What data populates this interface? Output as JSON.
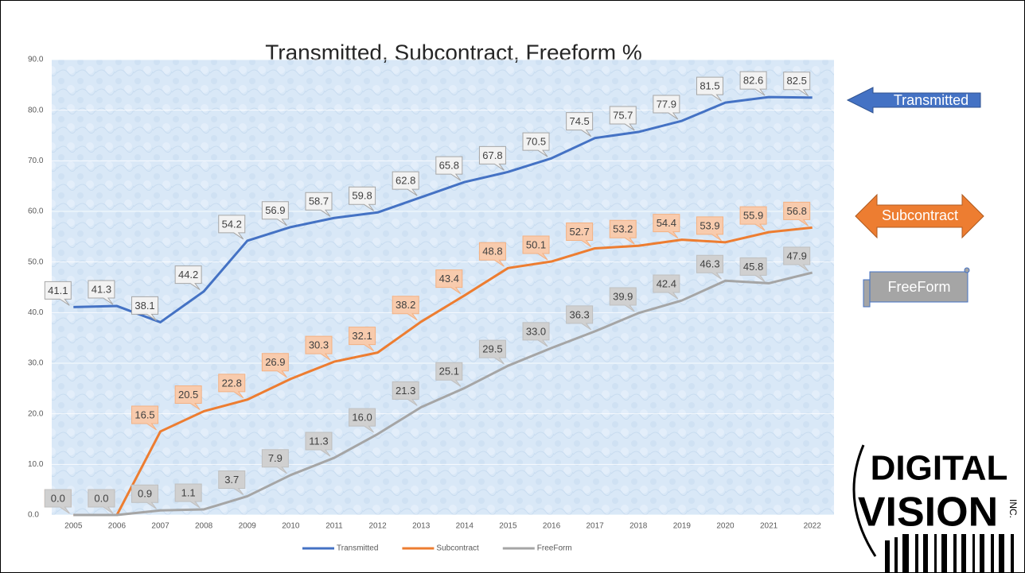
{
  "chart_data": {
    "type": "line",
    "title": "Transmitted, Subcontract, Freeform %",
    "categories": [
      "2005",
      "2006",
      "2007",
      "2008",
      "2009",
      "2010",
      "2011",
      "2012",
      "2013",
      "2014",
      "2015",
      "2016",
      "2017",
      "2018",
      "2019",
      "2020",
      "2021",
      "2022"
    ],
    "series": [
      {
        "name": "Transmitted",
        "color": "#4472c4",
        "values": [
          41.1,
          41.3,
          38.1,
          44.2,
          54.2,
          56.9,
          58.7,
          59.8,
          62.8,
          65.8,
          67.8,
          70.5,
          74.5,
          75.7,
          77.9,
          81.5,
          82.6,
          82.5
        ],
        "value_labels": [
          "41.1",
          "41.3",
          "38.1",
          "44.2",
          "54.2",
          "56.9",
          "58.7",
          "59.8",
          "62.8",
          "65.8",
          "67.8",
          "70.5",
          "74.5",
          "75.7",
          "77.9",
          "81.5",
          "82.6",
          "82.5"
        ]
      },
      {
        "name": "Subcontract",
        "color": "#ed7d31",
        "values": [
          0.0,
          0.0,
          16.5,
          20.5,
          22.8,
          26.9,
          30.3,
          32.1,
          38.2,
          43.4,
          48.8,
          50.1,
          52.7,
          53.2,
          54.4,
          53.9,
          55.9,
          56.8
        ],
        "value_labels": [
          "0.0",
          "0.0",
          "16.5",
          "20.5",
          "22.8",
          "26.9",
          "30.3",
          "32.1",
          "38.2",
          "43.4",
          "48.8",
          "50.1",
          "52.7",
          "53.2",
          "54.4",
          "53.9",
          "55.9",
          "56.8"
        ]
      },
      {
        "name": "FreeForm",
        "color": "#a5a5a5",
        "values": [
          0.0,
          0.0,
          0.9,
          1.1,
          3.7,
          7.9,
          11.3,
          16.0,
          21.3,
          25.1,
          29.5,
          33.0,
          36.3,
          39.9,
          42.4,
          46.3,
          45.8,
          47.9
        ],
        "value_labels": [
          "0.0",
          "0.0",
          "0.9",
          "1.1",
          "3.7",
          "7.9",
          "11.3",
          "16.0",
          "21.3",
          "25.1",
          "29.5",
          "33.0",
          "36.3",
          "39.9",
          "42.4",
          "46.3",
          "45.8",
          "47.9"
        ]
      }
    ],
    "ylim": [
      0,
      90
    ],
    "yticks": [
      {
        "value": 0,
        "label": "0.0"
      },
      {
        "value": 10,
        "label": "10.0"
      },
      {
        "value": 20,
        "label": "20.0"
      },
      {
        "value": 30,
        "label": "30.0"
      },
      {
        "value": 40,
        "label": "40.0"
      },
      {
        "value": 50,
        "label": "50.0"
      },
      {
        "value": 60,
        "label": "60.0"
      },
      {
        "value": 70,
        "label": "70.0"
      },
      {
        "value": 80,
        "label": "80.0"
      },
      {
        "value": 90,
        "label": "90.0"
      }
    ],
    "grid": true,
    "legend": "bottom",
    "annotations": [
      "Transmitted",
      "Subcontract",
      "FreeForm"
    ],
    "logo": {
      "line1": "DIGITAL",
      "line2": "VISION",
      "suffix": "INC."
    }
  }
}
